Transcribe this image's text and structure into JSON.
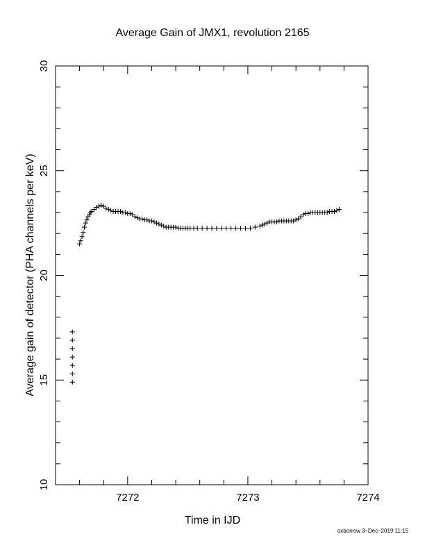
{
  "chart_data": {
    "type": "scatter",
    "title": "Average Gain of JMX1, revolution 2165",
    "xlabel": "Time in IJD",
    "ylabel": "Average gain of detector (PHA channels per keV)",
    "xlim": [
      7271.4,
      7274.0
    ],
    "ylim": [
      10,
      30
    ],
    "x_ticks": [
      7272,
      7273,
      7274
    ],
    "y_ticks": [
      10,
      15,
      20,
      25,
      30
    ],
    "marker": "plus",
    "grid": false,
    "legend": "none",
    "series": [
      {
        "x": [
          7271.54,
          7271.54,
          7271.54,
          7271.54,
          7271.54,
          7271.54,
          7271.54,
          7271.6,
          7271.61,
          7271.62,
          7271.63,
          7271.64,
          7271.65,
          7271.66,
          7271.67,
          7271.68,
          7271.69,
          7271.7,
          7271.72,
          7271.74,
          7271.76,
          7271.78,
          7271.8,
          7271.82,
          7271.84,
          7271.86,
          7271.88,
          7271.9,
          7271.92,
          7271.94,
          7271.96,
          7271.98,
          7272.0,
          7272.02,
          7272.04,
          7272.06,
          7272.08,
          7272.1,
          7272.12,
          7272.14,
          7272.16,
          7272.18,
          7272.2,
          7272.22,
          7272.24,
          7272.26,
          7272.28,
          7272.3,
          7272.32,
          7272.34,
          7272.36,
          7272.38,
          7272.4,
          7272.42,
          7272.44,
          7272.46,
          7272.48,
          7272.5,
          7272.52,
          7272.55,
          7272.58,
          7272.62,
          7272.66,
          7272.7,
          7272.74,
          7272.78,
          7272.82,
          7272.86,
          7272.9,
          7272.94,
          7272.98,
          7273.02,
          7273.06,
          7273.1,
          7273.12,
          7273.14,
          7273.16,
          7273.18,
          7273.2,
          7273.22,
          7273.24,
          7273.26,
          7273.28,
          7273.3,
          7273.32,
          7273.34,
          7273.36,
          7273.38,
          7273.4,
          7273.42,
          7273.44,
          7273.46,
          7273.48,
          7273.5,
          7273.52,
          7273.54,
          7273.56,
          7273.58,
          7273.6,
          7273.62,
          7273.64,
          7273.66,
          7273.68,
          7273.7,
          7273.72,
          7273.74,
          7273.76
        ],
        "y": [
          14.9,
          15.3,
          15.7,
          16.1,
          16.5,
          16.9,
          17.3,
          21.5,
          21.65,
          21.85,
          22.05,
          22.3,
          22.5,
          22.65,
          22.8,
          22.9,
          23.0,
          23.05,
          23.15,
          23.25,
          23.3,
          23.35,
          23.3,
          23.2,
          23.15,
          23.1,
          23.05,
          23.05,
          23.05,
          23.05,
          23.0,
          23.0,
          22.95,
          22.95,
          22.9,
          22.8,
          22.75,
          22.7,
          22.7,
          22.65,
          22.65,
          22.6,
          22.6,
          22.55,
          22.5,
          22.45,
          22.4,
          22.35,
          22.3,
          22.3,
          22.3,
          22.3,
          22.3,
          22.25,
          22.25,
          22.25,
          22.25,
          22.25,
          22.25,
          22.25,
          22.25,
          22.25,
          22.25,
          22.25,
          22.25,
          22.25,
          22.25,
          22.25,
          22.25,
          22.25,
          22.25,
          22.25,
          22.3,
          22.35,
          22.4,
          22.45,
          22.5,
          22.55,
          22.55,
          22.55,
          22.55,
          22.6,
          22.6,
          22.6,
          22.6,
          22.6,
          22.6,
          22.6,
          22.65,
          22.7,
          22.8,
          22.9,
          22.95,
          22.95,
          23.0,
          23.0,
          23.0,
          23.0,
          23.0,
          23.0,
          23.0,
          23.0,
          23.05,
          23.05,
          23.05,
          23.1,
          23.15
        ]
      }
    ]
  },
  "footer": {
    "credit": "oxborrow 3–Dec–2019 11:15"
  }
}
